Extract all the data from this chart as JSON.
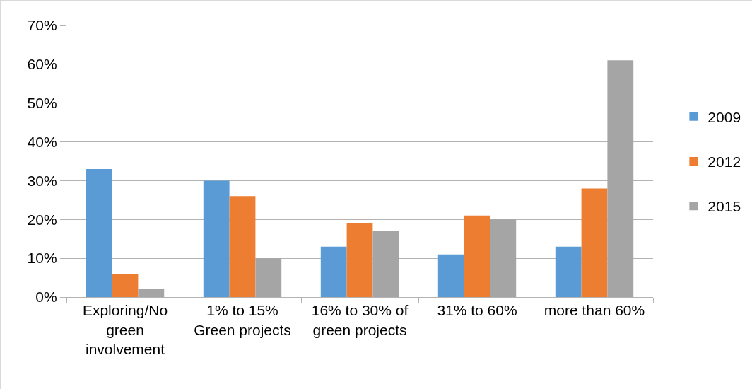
{
  "chart_data": {
    "type": "bar",
    "categories": [
      "Exploring/No green involvement",
      "1% to 15% Green projects",
      "16% to 30% of green projects",
      "31% to 60%",
      "more than 60%"
    ],
    "series": [
      {
        "name": "2009",
        "color": "#5b9bd5",
        "values": [
          33,
          30,
          13,
          11,
          13
        ]
      },
      {
        "name": "2012",
        "color": "#ed7d31",
        "values": [
          6,
          26,
          19,
          21,
          28
        ]
      },
      {
        "name": "2015",
        "color": "#a5a5a5",
        "values": [
          2,
          10,
          17,
          20,
          61
        ]
      }
    ],
    "ylim": [
      0,
      70
    ],
    "yticks": [
      {
        "value": 0,
        "label": "0%"
      },
      {
        "value": 10,
        "label": "10%"
      },
      {
        "value": 20,
        "label": "20%"
      },
      {
        "value": 30,
        "label": "30%"
      },
      {
        "value": 40,
        "label": "40%"
      },
      {
        "value": 50,
        "label": "50%"
      },
      {
        "value": 60,
        "label": "60%"
      },
      {
        "value": 70,
        "label": "70%"
      }
    ],
    "grid": "y",
    "legend": "right"
  }
}
